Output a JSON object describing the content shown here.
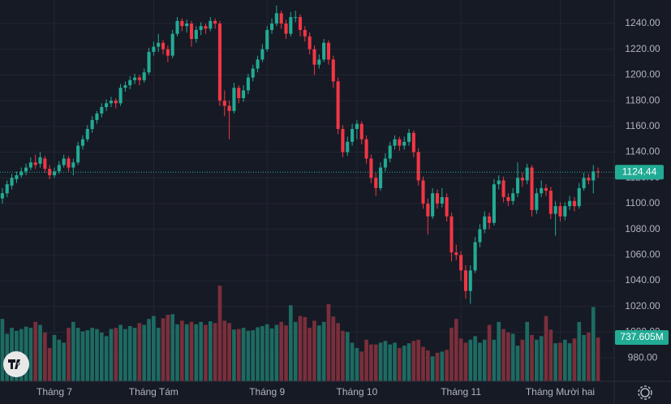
{
  "chart_data": {
    "type": "candlestick",
    "categories": [
      null,
      null,
      null,
      null,
      null,
      null,
      null,
      null,
      null,
      null,
      null,
      "Tháng 7",
      null,
      null,
      null,
      null,
      null,
      null,
      null,
      null,
      null,
      null,
      null,
      null,
      null,
      null,
      null,
      null,
      null,
      null,
      null,
      null,
      "Tháng Tám",
      null,
      null,
      null,
      null,
      null,
      null,
      null,
      null,
      null,
      null,
      null,
      null,
      null,
      null,
      null,
      null,
      null,
      null,
      null,
      null,
      null,
      null,
      null,
      "Tháng 9",
      null,
      null,
      null,
      null,
      null,
      null,
      null,
      null,
      null,
      null,
      null,
      null,
      null,
      null,
      null,
      null,
      null,
      null,
      "Tháng 10",
      null,
      null,
      null,
      null,
      null,
      null,
      null,
      null,
      null,
      null,
      null,
      null,
      null,
      null,
      null,
      null,
      null,
      null,
      null,
      null,
      null,
      "Tháng 11",
      null,
      null,
      null,
      null,
      null,
      null,
      null,
      null,
      null,
      null,
      null,
      null,
      null,
      null,
      null,
      null,
      null,
      null,
      null,
      null,
      "Tháng Mười hai",
      null,
      null,
      null,
      null,
      null
    ],
    "candles": [
      [
        1104,
        1112,
        1100,
        1108
      ],
      [
        1108,
        1118,
        1105,
        1115
      ],
      [
        1114,
        1123,
        1111,
        1120
      ],
      [
        1119,
        1125,
        1116,
        1122
      ],
      [
        1122,
        1128,
        1120,
        1125
      ],
      [
        1125,
        1131,
        1122,
        1128
      ],
      [
        1128,
        1136,
        1126,
        1132
      ],
      [
        1132,
        1138,
        1127,
        1130
      ],
      [
        1131,
        1140,
        1128,
        1136
      ],
      [
        1135,
        1137,
        1124,
        1127
      ],
      [
        1127,
        1130,
        1119,
        1122
      ],
      [
        1122,
        1128,
        1120,
        1125
      ],
      [
        1125,
        1133,
        1123,
        1130
      ],
      [
        1130,
        1138,
        1128,
        1135
      ],
      [
        1135,
        1137,
        1125,
        1128
      ],
      [
        1128,
        1135,
        1122,
        1132
      ],
      [
        1132,
        1148,
        1130,
        1145
      ],
      [
        1145,
        1153,
        1142,
        1150
      ],
      [
        1150,
        1161,
        1148,
        1158
      ],
      [
        1158,
        1168,
        1155,
        1165
      ],
      [
        1165,
        1172,
        1162,
        1170
      ],
      [
        1170,
        1178,
        1167,
        1175
      ],
      [
        1175,
        1181,
        1172,
        1178
      ],
      [
        1178,
        1183,
        1175,
        1180
      ],
      [
        1180,
        1182,
        1174,
        1178
      ],
      [
        1178,
        1193,
        1176,
        1190
      ],
      [
        1190,
        1195,
        1187,
        1192
      ],
      [
        1192,
        1199,
        1189,
        1196
      ],
      [
        1196,
        1201,
        1193,
        1198
      ],
      [
        1198,
        1200,
        1192,
        1196
      ],
      [
        1196,
        1205,
        1194,
        1202
      ],
      [
        1202,
        1221,
        1200,
        1218
      ],
      [
        1218,
        1226,
        1215,
        1222
      ],
      [
        1222,
        1232,
        1218,
        1225
      ],
      [
        1225,
        1227,
        1216,
        1220
      ],
      [
        1220,
        1223,
        1210,
        1215
      ],
      [
        1215,
        1235,
        1213,
        1232
      ],
      [
        1232,
        1245,
        1230,
        1242
      ],
      [
        1242,
        1244,
        1234,
        1238
      ],
      [
        1238,
        1243,
        1233,
        1240
      ],
      [
        1240,
        1242,
        1222,
        1228
      ],
      [
        1228,
        1238,
        1225,
        1235
      ],
      [
        1235,
        1241,
        1231,
        1238
      ],
      [
        1238,
        1240,
        1232,
        1236
      ],
      [
        1236,
        1245,
        1234,
        1242
      ],
      [
        1242,
        1244,
        1236,
        1240
      ],
      [
        1240,
        1242,
        1176,
        1180
      ],
      [
        1180,
        1188,
        1168,
        1176
      ],
      [
        1176,
        1180,
        1150,
        1172
      ],
      [
        1172,
        1194,
        1170,
        1190
      ],
      [
        1190,
        1192,
        1178,
        1182
      ],
      [
        1182,
        1192,
        1179,
        1188
      ],
      [
        1188,
        1201,
        1185,
        1198
      ],
      [
        1198,
        1208,
        1195,
        1205
      ],
      [
        1205,
        1215,
        1202,
        1212
      ],
      [
        1212,
        1224,
        1210,
        1220
      ],
      [
        1220,
        1238,
        1218,
        1235
      ],
      [
        1235,
        1244,
        1232,
        1240
      ],
      [
        1240,
        1254,
        1238,
        1248
      ],
      [
        1248,
        1250,
        1236,
        1240
      ],
      [
        1240,
        1243,
        1228,
        1232
      ],
      [
        1232,
        1249,
        1230,
        1245
      ],
      [
        1245,
        1250,
        1241,
        1245
      ],
      [
        1245,
        1247,
        1230,
        1235
      ],
      [
        1235,
        1238,
        1226,
        1230
      ],
      [
        1230,
        1233,
        1216,
        1220
      ],
      [
        1220,
        1223,
        1200,
        1208
      ],
      [
        1208,
        1216,
        1205,
        1212
      ],
      [
        1212,
        1228,
        1210,
        1225
      ],
      [
        1225,
        1227,
        1208,
        1212
      ],
      [
        1212,
        1215,
        1190,
        1195
      ],
      [
        1195,
        1198,
        1154,
        1158
      ],
      [
        1158,
        1161,
        1136,
        1140
      ],
      [
        1140,
        1152,
        1137,
        1148
      ],
      [
        1148,
        1162,
        1145,
        1158
      ],
      [
        1158,
        1165,
        1150,
        1162
      ],
      [
        1162,
        1164,
        1146,
        1150
      ],
      [
        1150,
        1153,
        1131,
        1135
      ],
      [
        1135,
        1138,
        1116,
        1120
      ],
      [
        1120,
        1124,
        1106,
        1112
      ],
      [
        1112,
        1132,
        1110,
        1128
      ],
      [
        1128,
        1139,
        1125,
        1135
      ],
      [
        1135,
        1148,
        1132,
        1145
      ],
      [
        1145,
        1153,
        1142,
        1150
      ],
      [
        1150,
        1152,
        1141,
        1145
      ],
      [
        1145,
        1152,
        1142,
        1148
      ],
      [
        1148,
        1158,
        1145,
        1155
      ],
      [
        1155,
        1157,
        1136,
        1140
      ],
      [
        1140,
        1143,
        1114,
        1118
      ],
      [
        1118,
        1121,
        1096,
        1100
      ],
      [
        1100,
        1104,
        1076,
        1090
      ],
      [
        1090,
        1112,
        1088,
        1108
      ],
      [
        1108,
        1111,
        1096,
        1100
      ],
      [
        1100,
        1112,
        1097,
        1105
      ],
      [
        1105,
        1108,
        1086,
        1090
      ],
      [
        1090,
        1093,
        1055,
        1062
      ],
      [
        1062,
        1068,
        1056,
        1060
      ],
      [
        1060,
        1063,
        1040,
        1048
      ],
      [
        1048,
        1052,
        1026,
        1032
      ],
      [
        1032,
        1052,
        1022,
        1048
      ],
      [
        1048,
        1074,
        1046,
        1070
      ],
      [
        1070,
        1084,
        1066,
        1080
      ],
      [
        1080,
        1094,
        1077,
        1090
      ],
      [
        1090,
        1093,
        1080,
        1085
      ],
      [
        1085,
        1119,
        1083,
        1115
      ],
      [
        1115,
        1122,
        1111,
        1118
      ],
      [
        1118,
        1121,
        1101,
        1105
      ],
      [
        1105,
        1108,
        1098,
        1102
      ],
      [
        1102,
        1112,
        1099,
        1108
      ],
      [
        1108,
        1132,
        1105,
        1120
      ],
      [
        1120,
        1124,
        1113,
        1118
      ],
      [
        1118,
        1131,
        1115,
        1128
      ],
      [
        1128,
        1130,
        1090,
        1095
      ],
      [
        1095,
        1112,
        1092,
        1108
      ],
      [
        1108,
        1118,
        1105,
        1112
      ],
      [
        1112,
        1115,
        1106,
        1110
      ],
      [
        1110,
        1113,
        1088,
        1092
      ],
      [
        1092,
        1102,
        1075,
        1098
      ],
      [
        1098,
        1101,
        1086,
        1090
      ],
      [
        1090,
        1101,
        1087,
        1098
      ],
      [
        1098,
        1106,
        1095,
        1102
      ],
      [
        1102,
        1105,
        1094,
        1098
      ],
      [
        1098,
        1116,
        1096,
        1112
      ],
      [
        1112,
        1124,
        1110,
        1120
      ],
      [
        1120,
        1123,
        1115,
        1118
      ],
      [
        1118,
        1130,
        1108,
        1125
      ],
      [
        1125,
        1128,
        1120,
        1124.44
      ]
    ],
    "volume": {
      "values": [
        1050,
        800,
        900,
        850,
        880,
        920,
        900,
        1000,
        950,
        820,
        560,
        780,
        700,
        650,
        900,
        1000,
        900,
        840,
        860,
        900,
        880,
        820,
        760,
        880,
        900,
        950,
        880,
        930,
        900,
        980,
        950,
        1050,
        1100,
        900,
        1060,
        1120,
        1130,
        960,
        1020,
        960,
        1000,
        960,
        1000,
        950,
        1010,
        980,
        1610,
        1020,
        980,
        870,
        880,
        900,
        850,
        860,
        910,
        930,
        960,
        890,
        950,
        1000,
        940,
        1280,
        1000,
        1100,
        1080,
        900,
        1020,
        940,
        1000,
        1300,
        1090,
        980,
        850,
        830,
        650,
        560,
        500,
        700,
        620,
        620,
        650,
        680,
        620,
        650,
        560,
        600,
        640,
        680,
        700,
        580,
        520,
        420,
        480,
        500,
        530,
        900,
        1050,
        720,
        650,
        700,
        760,
        650,
        700,
        950,
        700,
        1000,
        880,
        820,
        800,
        600,
        700,
        1000,
        780,
        700,
        760,
        1100,
        870,
        640,
        650,
        700,
        640,
        720,
        1000,
        780,
        820,
        1250,
        737.605
      ],
      "vlim": [
        0,
        6420
      ],
      "last_label": {
        "value": 737.605,
        "label": "737.605M"
      }
    },
    "last_price": 1124.44,
    "ylim": [
      961.8,
      1258.3
    ],
    "yticks": [
      {
        "value": 980,
        "label": "980.00"
      },
      {
        "value": 1000,
        "label": "1000.00"
      },
      {
        "value": 1020,
        "label": "1020.00"
      },
      {
        "value": 1040,
        "label": "1040.00"
      },
      {
        "value": 1060,
        "label": "1060.00"
      },
      {
        "value": 1080,
        "label": "1080.00"
      },
      {
        "value": 1100,
        "label": "1100.00"
      },
      {
        "value": 1120,
        "label": "1120.00"
      },
      {
        "value": 1140,
        "label": "1140.00"
      },
      {
        "value": 1160,
        "label": "1160.00"
      },
      {
        "value": 1180,
        "label": "1180.00"
      },
      {
        "value": 1200,
        "label": "1200.00"
      },
      {
        "value": 1220,
        "label": "1220.00"
      },
      {
        "value": 1240,
        "label": "1240.00"
      }
    ],
    "grid": true,
    "up_color": "#22ab94",
    "down_color": "#f23645",
    "volume_up_color": "#1d6b62",
    "volume_down_color": "#7a2f3b"
  }
}
